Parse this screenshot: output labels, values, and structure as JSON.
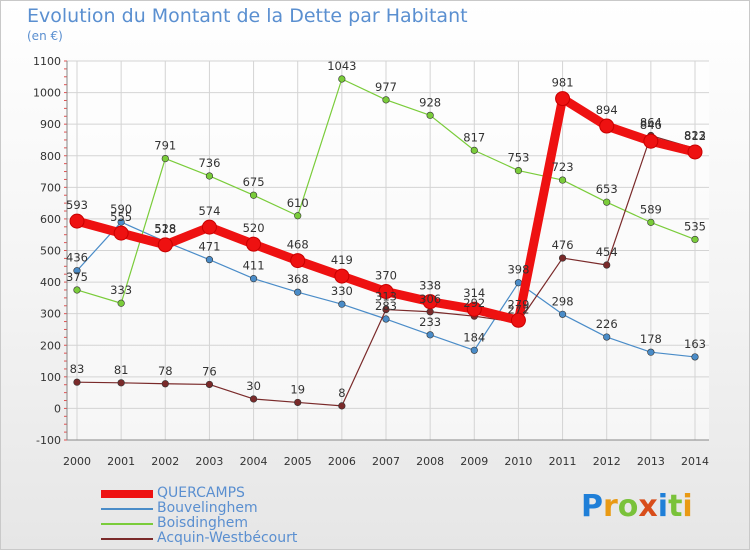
{
  "chart_data": {
    "type": "line",
    "title": "Evolution du Montant de la Dette par Habitant",
    "subtitle": "(en €)",
    "x": [
      "2000",
      "2001",
      "2002",
      "2003",
      "2004",
      "2005",
      "2006",
      "2007",
      "2008",
      "2009",
      "2010",
      "2011",
      "2012",
      "2013",
      "2014"
    ],
    "ylim": [
      -100,
      1100
    ],
    "yticks": [
      -100,
      0,
      100,
      200,
      300,
      400,
      500,
      600,
      700,
      800,
      900,
      1000,
      1100
    ],
    "grid": true,
    "legend_position": "bottom-left",
    "series": [
      {
        "name": "QUERCAMPS",
        "color": "#ee1111",
        "values": [
          593,
          555,
          518,
          574,
          520,
          468,
          419,
          370,
          338,
          314,
          279,
          981,
          894,
          846,
          812
        ]
      },
      {
        "name": "Bouvelinghem",
        "color": "#4a8cc8",
        "values": [
          436,
          590,
          528,
          471,
          411,
          368,
          330,
          283,
          233,
          184,
          398,
          298,
          226,
          178,
          163
        ]
      },
      {
        "name": "Boisdinghem",
        "color": "#7acc3a",
        "values": [
          375,
          333,
          791,
          736,
          675,
          610,
          1043,
          977,
          928,
          817,
          753,
          723,
          653,
          589,
          535
        ]
      },
      {
        "name": "Acquin-Westbécourt",
        "color": "#7a2a2a",
        "values": [
          83,
          81,
          78,
          76,
          30,
          19,
          8,
          313,
          306,
          292,
          272,
          476,
          454,
          864,
          823
        ]
      }
    ]
  },
  "logo": {
    "text": "Proxiti",
    "letters": [
      "P",
      "r",
      "o",
      "x",
      "i",
      "t",
      "i"
    ],
    "colors": [
      "#1f7fd8",
      "#e99a14",
      "#7ac23a",
      "#d84d1a",
      "#1f7fd8",
      "#7ac23a",
      "#e99a14"
    ]
  }
}
